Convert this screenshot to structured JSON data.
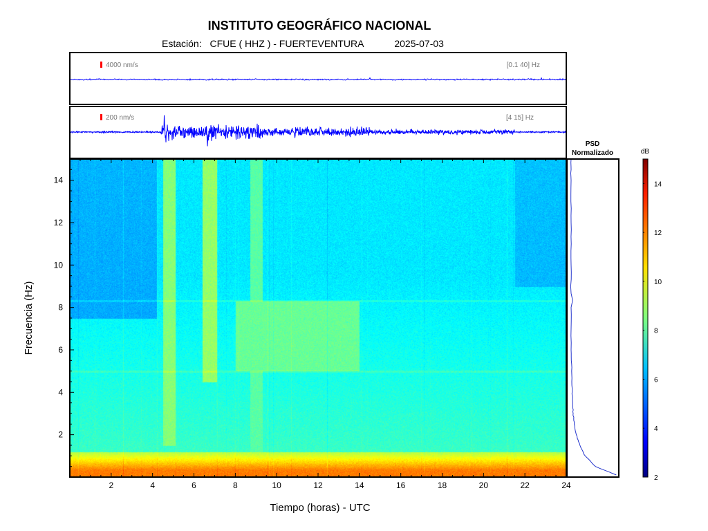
{
  "header": {
    "title": "INSTITUTO GEOGRÁFICO NACIONAL",
    "station_label": "Estación:",
    "station_value": "CFUE ( HHZ ) - FUERTEVENTURA",
    "date": "2025-07-03"
  },
  "chart_data": [
    {
      "type": "line",
      "name": "seismogram-broadband",
      "scale_label": "4000 nm/s",
      "band_label": "[0.1 40] Hz",
      "x_range": [
        0,
        24
      ],
      "color": "#0000ff",
      "activity": "low"
    },
    {
      "type": "line",
      "name": "seismogram-filtered",
      "scale_label": "200 nm/s",
      "band_label": "[4 15] Hz",
      "x_range": [
        0,
        24
      ],
      "color": "#0000ff",
      "bursts": [
        {
          "t": 4.55,
          "amp": 1.0
        },
        {
          "t": 4.75,
          "amp": 0.85
        },
        {
          "t": 5.1,
          "amp": 0.6
        },
        {
          "t": 5.6,
          "amp": 0.45
        },
        {
          "t": 6.4,
          "amp": 0.55
        },
        {
          "t": 6.7,
          "amp": 0.8
        },
        {
          "t": 6.9,
          "amp": 0.5
        },
        {
          "t": 7.3,
          "amp": 0.7
        },
        {
          "t": 7.6,
          "amp": 0.45
        },
        {
          "t": 8.3,
          "amp": 0.4
        },
        {
          "t": 9.1,
          "amp": 0.9
        },
        {
          "t": 15.8,
          "amp": 0.35
        }
      ],
      "background_activity": [
        {
          "start": 4.4,
          "end": 9.5,
          "level": 0.45
        },
        {
          "start": 9.5,
          "end": 14.5,
          "level": 0.28
        },
        {
          "start": 14.5,
          "end": 21.5,
          "level": 0.12
        }
      ]
    },
    {
      "type": "heatmap",
      "name": "spectrogram",
      "xlabel": "Tiempo (horas) - UTC",
      "ylabel": "Frecuencia (Hz)",
      "xlim": [
        0,
        24
      ],
      "ylim": [
        0,
        15
      ],
      "xticks": [
        2,
        4,
        6,
        8,
        10,
        12,
        14,
        16,
        18,
        20,
        22,
        24
      ],
      "yticks": [
        2,
        4,
        6,
        8,
        10,
        12,
        14
      ],
      "colorscale": "jet",
      "active_bands": [
        {
          "t_start": 4.5,
          "t_end": 5.1,
          "f_min": 1.5,
          "f_max": 15,
          "level": 8.6
        },
        {
          "t_start": 6.4,
          "t_end": 7.1,
          "f_min": 4.5,
          "f_max": 15,
          "level": 8.8
        },
        {
          "t_start": 8.0,
          "t_end": 14.0,
          "f_min": 5.0,
          "f_max": 8.3,
          "level": 8.2
        },
        {
          "t_start": 8.7,
          "t_end": 9.3,
          "f_min": 1.0,
          "f_max": 15,
          "level": 8.0
        }
      ],
      "quiet_regions": [
        {
          "t_start": 0,
          "t_end": 4.2,
          "f_min": 7.5,
          "f_max": 15,
          "level": 5.8
        },
        {
          "t_start": 21.5,
          "t_end": 24,
          "f_min": 9,
          "f_max": 15,
          "level": 6.0
        }
      ]
    },
    {
      "type": "line",
      "name": "psd",
      "title_line1": "PSD",
      "title_line2": "Normalizado",
      "x": [
        0.95,
        0.55,
        0.35,
        0.25,
        0.18,
        0.14,
        0.12,
        0.11,
        0.1,
        0.09,
        0.08,
        0.08,
        0.08,
        0.08,
        0.08,
        0.08
      ],
      "y": [
        0.1,
        0.5,
        1.0,
        1.5,
        2.0,
        2.5,
        3.0,
        3.5,
        4.0,
        5.0,
        6.0,
        8.0,
        10.0,
        12.0,
        14.0,
        15.0
      ],
      "peaks": [
        {
          "f": 5.0,
          "value": 0.2
        },
        {
          "f": 8.3,
          "value": 0.11
        }
      ]
    },
    {
      "type": "colorbar",
      "name": "colorbar",
      "label": "dB",
      "range": [
        2,
        15
      ],
      "ticks": [
        2,
        4,
        6,
        8,
        10,
        12,
        14
      ],
      "colorscale": "jet"
    }
  ]
}
